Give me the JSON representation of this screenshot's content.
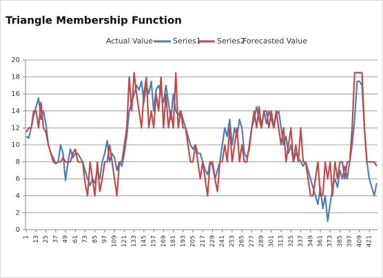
{
  "chart_data": {
    "type": "line",
    "title": "Triangle Membership Function",
    "annotations": [
      "Actual Value",
      "Forecasted Value"
    ],
    "x": [
      1,
      4,
      7,
      10,
      13,
      16,
      19,
      22,
      25,
      28,
      31,
      34,
      37,
      40,
      43,
      46,
      49,
      52,
      55,
      58,
      61,
      64,
      67,
      70,
      73,
      76,
      79,
      82,
      85,
      88,
      91,
      94,
      97,
      100,
      103,
      106,
      109,
      112,
      115,
      118,
      121,
      124,
      127,
      130,
      133,
      136,
      139,
      142,
      145,
      148,
      151,
      154,
      157,
      160,
      163,
      166,
      169,
      172,
      175,
      178,
      181,
      184,
      187,
      190,
      193,
      196,
      199,
      202,
      205,
      208,
      211,
      214,
      217,
      220,
      223,
      226,
      229,
      232,
      235,
      238,
      241,
      244,
      247,
      250,
      253,
      256,
      259,
      262,
      265,
      268,
      271,
      274,
      277,
      280,
      283,
      286,
      289,
      292,
      295,
      298,
      301,
      304,
      307,
      310,
      313,
      316,
      319,
      322,
      325,
      328,
      331,
      334,
      337,
      340,
      343,
      346,
      349,
      352,
      355,
      358,
      361,
      364,
      367,
      370,
      373,
      376,
      379,
      382,
      385,
      388,
      391,
      394,
      397,
      400,
      403,
      406,
      409,
      412,
      415,
      418,
      421,
      424,
      427,
      430
    ],
    "series": [
      {
        "name": "Series1",
        "color": "#4a7ebb",
        "values": [
          11,
          10.8,
          12,
          13.5,
          14.5,
          15.5,
          13,
          14,
          12.5,
          10,
          9,
          8.5,
          7.8,
          8,
          10,
          9,
          5.8,
          8,
          9.5,
          8.5,
          9,
          9,
          8.5,
          8,
          7,
          6,
          5.2,
          6,
          5.5,
          7,
          6,
          8,
          9,
          10.5,
          8,
          9,
          8.5,
          7,
          8,
          7.5,
          9,
          11,
          14,
          15,
          16,
          17,
          16.5,
          17.5,
          15,
          17,
          16,
          17.5,
          14,
          16.5,
          17,
          16,
          15,
          17,
          15,
          13,
          16,
          14,
          13.5,
          14,
          13,
          12,
          11,
          10,
          9.5,
          10,
          9,
          9,
          8,
          7,
          6.5,
          8,
          7.5,
          6,
          7,
          8,
          10,
          12,
          11,
          13,
          10,
          12,
          11,
          13,
          12,
          9,
          8.5,
          9.5,
          12,
          13,
          14.5,
          13,
          12,
          14,
          12.5,
          14,
          13,
          12,
          13.5,
          14,
          12,
          10,
          11,
          9,
          10,
          8,
          9,
          8.5,
          8,
          7.5,
          8,
          7,
          6,
          5,
          4,
          3,
          5,
          2.5,
          4,
          1,
          3,
          5,
          6,
          5,
          7,
          6,
          7.5,
          6,
          8,
          10,
          13,
          17.5,
          17.5,
          17,
          12,
          8,
          6,
          5,
          4,
          5.5
        ]
      },
      {
        "name": "Series2",
        "color": "#be4b48",
        "values": [
          11.5,
          12,
          12,
          14,
          14,
          12,
          15,
          12,
          11.5,
          10,
          9,
          8,
          7.8,
          8,
          8,
          8.5,
          8,
          8,
          8,
          9,
          9.5,
          8,
          8,
          8,
          5.5,
          4,
          8,
          6,
          4,
          8,
          4.5,
          6,
          8,
          8,
          10,
          8,
          6,
          4,
          8,
          8,
          10,
          12,
          18,
          14,
          18.5,
          16,
          14,
          12,
          16,
          18,
          12,
          14,
          12,
          16,
          14,
          18,
          12,
          16,
          12,
          14,
          12,
          18.5,
          12,
          14,
          12,
          12,
          10,
          8,
          8,
          10,
          8,
          6,
          8,
          6,
          4,
          8,
          8,
          6,
          4.5,
          8,
          8,
          10,
          8,
          12,
          8,
          10,
          12,
          8,
          10,
          8,
          8,
          10,
          12,
          14,
          12,
          14.5,
          12,
          14,
          14,
          12,
          14,
          12,
          14,
          12,
          10,
          12,
          8,
          10,
          12,
          8,
          10,
          8,
          12,
          8,
          8,
          6,
          4,
          4,
          6,
          8,
          4,
          4,
          8,
          6,
          8,
          4,
          8,
          6,
          8,
          8,
          6,
          8,
          8,
          12,
          18.5,
          18.5,
          18.5,
          18.5,
          12,
          8,
          8,
          8,
          8,
          7.5
        ]
      }
    ],
    "xlim": [
      0,
      431
    ],
    "xticks": [
      1,
      13,
      25,
      37,
      49,
      61,
      73,
      85,
      97,
      109,
      121,
      133,
      145,
      157,
      169,
      181,
      193,
      205,
      217,
      229,
      241,
      253,
      265,
      277,
      289,
      301,
      313,
      325,
      337,
      349,
      361,
      373,
      385,
      397,
      409,
      421
    ],
    "ylim": [
      0,
      20
    ],
    "yticks": [
      0,
      2,
      4,
      6,
      8,
      10,
      12,
      14,
      16,
      18,
      20
    ],
    "grid": true
  }
}
